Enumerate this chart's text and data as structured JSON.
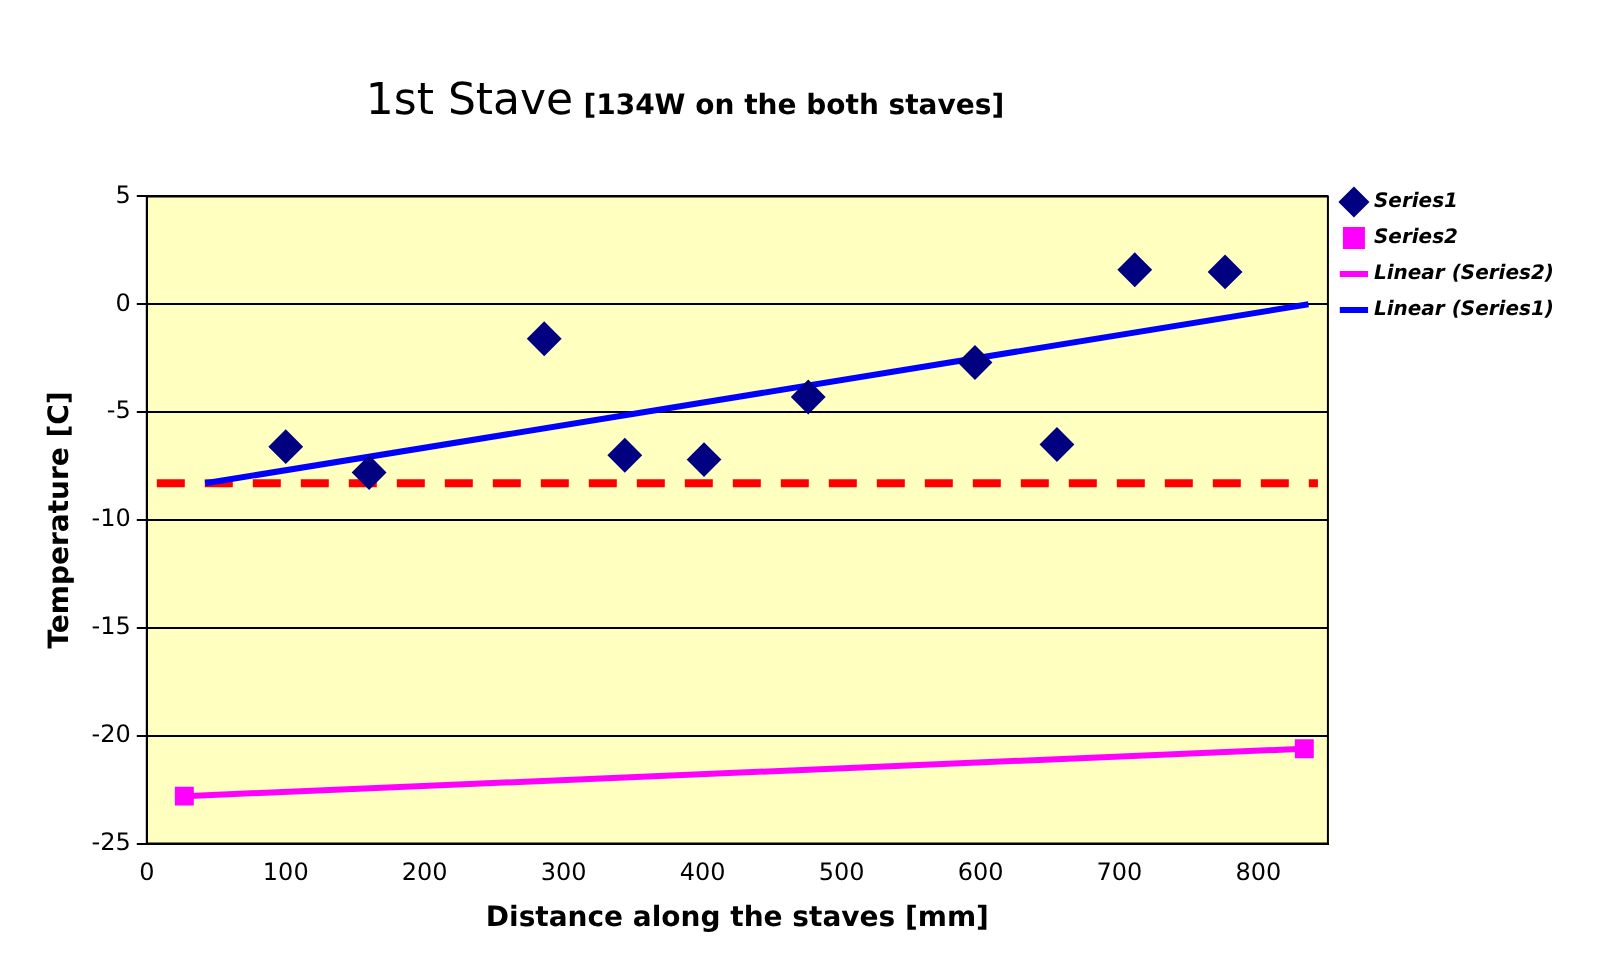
{
  "chart_data": {
    "type": "scatter",
    "title": "1st Stave",
    "subtitle": "[134W on the both staves]",
    "xlabel": "Distance along the staves [mm]",
    "ylabel": "Temperature [C]",
    "series": [
      {
        "name": "Series1",
        "type": "scatter",
        "marker": "diamond",
        "color": "#000080",
        "x": [
          100,
          160,
          286,
          344,
          401,
          476,
          596,
          655,
          711,
          776
        ],
        "values": [
          -6.6,
          -7.8,
          -1.6,
          -7.0,
          -7.2,
          -4.3,
          -2.7,
          -6.5,
          1.6,
          1.5
        ]
      },
      {
        "name": "Series2",
        "type": "scatter",
        "marker": "square",
        "color": "#ff00ff",
        "x": [
          27,
          833
        ],
        "values": [
          -22.8,
          -20.6
        ]
      },
      {
        "name": "Linear (Series2)",
        "type": "line",
        "marker": "none",
        "color": "#ff00ff",
        "x": [
          27,
          833
        ],
        "values": [
          -22.8,
          -20.6
        ]
      },
      {
        "name": "Linear (Series1)",
        "type": "line",
        "marker": "none",
        "color": "#0000ff",
        "x": [
          42,
          836
        ],
        "values": [
          -8.3,
          0
        ]
      }
    ],
    "ref_lines": [
      {
        "axis": "y",
        "value": -8.3,
        "color": "#ff0000",
        "line_style": "dashed"
      }
    ],
    "xlim": [
      0,
      850
    ],
    "xticks": [
      0,
      100,
      200,
      300,
      400,
      500,
      600,
      700,
      800
    ],
    "ylim": [
      -25,
      5
    ],
    "yticks": [
      -25,
      -20,
      -15,
      -10,
      -5,
      0,
      5
    ],
    "grid": "y",
    "legend": "top right"
  }
}
